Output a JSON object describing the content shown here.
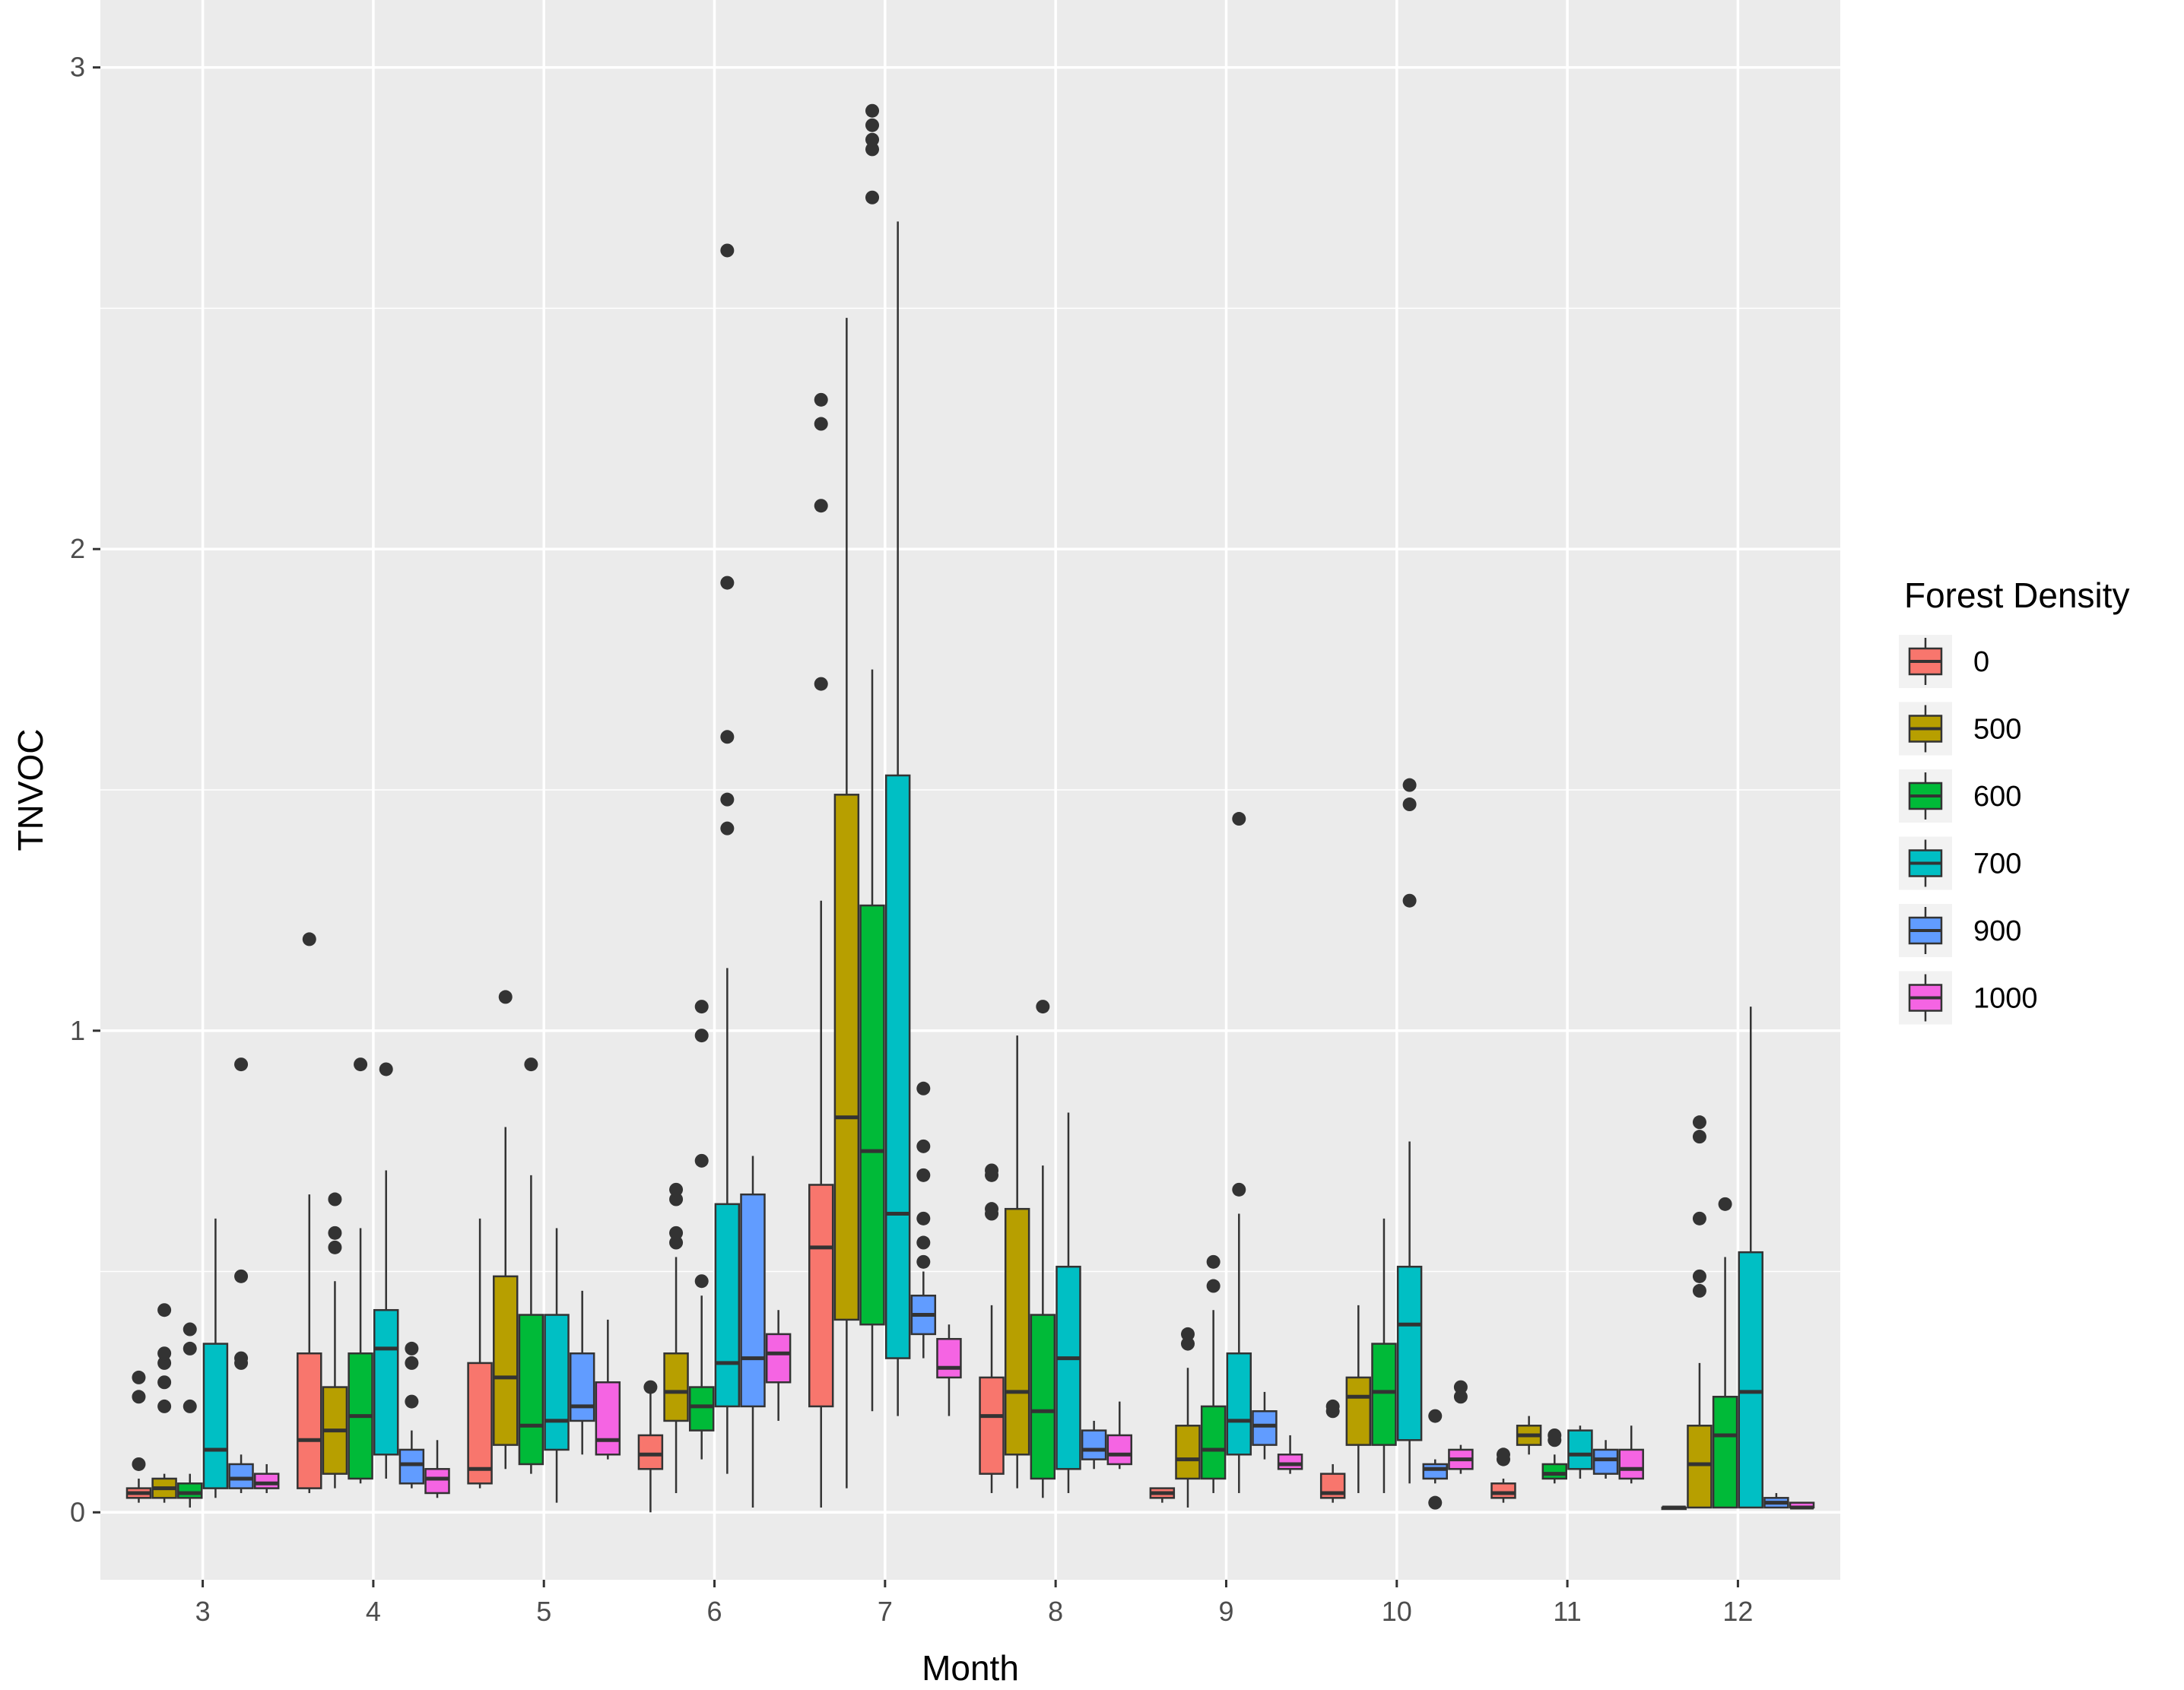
{
  "chart_data": {
    "type": "boxplot",
    "title": "",
    "xlabel": "Month",
    "ylabel": "TNVOC",
    "ylim": [
      -0.14,
      3.14
    ],
    "yticks": [
      0,
      1,
      2,
      3
    ],
    "categories": [
      "3",
      "4",
      "5",
      "6",
      "7",
      "8",
      "9",
      "10",
      "11",
      "12"
    ],
    "legend": {
      "title": "Forest Density",
      "position": "right",
      "entries": [
        "0",
        "500",
        "600",
        "700",
        "900",
        "1000"
      ]
    },
    "series": [
      {
        "name": "0",
        "color": "#F8766D",
        "boxes": [
          {
            "month": "3",
            "q1": 0.03,
            "median": 0.04,
            "q3": 0.05,
            "whisker_low": 0.02,
            "whisker_high": 0.07,
            "outliers": [
              0.1,
              0.24,
              0.28
            ]
          },
          {
            "month": "4",
            "q1": 0.05,
            "median": 0.15,
            "q3": 0.33,
            "whisker_low": 0.04,
            "whisker_high": 0.66,
            "outliers": [
              1.19
            ]
          },
          {
            "month": "5",
            "q1": 0.06,
            "median": 0.09,
            "q3": 0.31,
            "whisker_low": 0.05,
            "whisker_high": 0.61,
            "outliers": []
          },
          {
            "month": "6",
            "q1": 0.09,
            "median": 0.12,
            "q3": 0.16,
            "whisker_low": 0.0,
            "whisker_high": 0.25,
            "outliers": [
              0.26
            ]
          },
          {
            "month": "7",
            "q1": 0.22,
            "median": 0.55,
            "q3": 0.68,
            "whisker_low": 0.01,
            "whisker_high": 1.27,
            "outliers": [
              1.72,
              2.09,
              2.26,
              2.31
            ]
          },
          {
            "month": "8",
            "q1": 0.08,
            "median": 0.2,
            "q3": 0.28,
            "whisker_low": 0.04,
            "whisker_high": 0.43,
            "outliers": [
              0.62,
              0.63,
              0.7,
              0.71
            ]
          },
          {
            "month": "9",
            "q1": 0.03,
            "median": 0.04,
            "q3": 0.05,
            "whisker_low": 0.02,
            "whisker_high": 0.05,
            "outliers": []
          },
          {
            "month": "10",
            "q1": 0.03,
            "median": 0.04,
            "q3": 0.08,
            "whisker_low": 0.02,
            "whisker_high": 0.1,
            "outliers": [
              0.21,
              0.22
            ]
          },
          {
            "month": "11",
            "q1": 0.03,
            "median": 0.04,
            "q3": 0.06,
            "whisker_low": 0.02,
            "whisker_high": 0.07,
            "outliers": [
              0.11,
              0.12
            ]
          },
          {
            "month": "12",
            "q1": 0.01,
            "median": 0.01,
            "q3": 0.01,
            "whisker_low": 0.01,
            "whisker_high": 0.01,
            "outliers": []
          }
        ]
      },
      {
        "name": "500",
        "color": "#B79F00",
        "boxes": [
          {
            "month": "3",
            "q1": 0.03,
            "median": 0.05,
            "q3": 0.07,
            "whisker_low": 0.02,
            "whisker_high": 0.08,
            "outliers": [
              0.22,
              0.27,
              0.31,
              0.33,
              0.42
            ]
          },
          {
            "month": "4",
            "q1": 0.08,
            "median": 0.17,
            "q3": 0.26,
            "whisker_low": 0.05,
            "whisker_high": 0.48,
            "outliers": [
              0.55,
              0.58,
              0.65
            ]
          },
          {
            "month": "5",
            "q1": 0.14,
            "median": 0.28,
            "q3": 0.49,
            "whisker_low": 0.09,
            "whisker_high": 0.8,
            "outliers": [
              1.07
            ]
          },
          {
            "month": "6",
            "q1": 0.19,
            "median": 0.25,
            "q3": 0.33,
            "whisker_low": 0.04,
            "whisker_high": 0.53,
            "outliers": [
              0.56,
              0.58,
              0.65,
              0.67
            ]
          },
          {
            "month": "7",
            "q1": 0.4,
            "median": 0.82,
            "q3": 1.49,
            "whisker_low": 0.05,
            "whisker_high": 2.48,
            "outliers": []
          },
          {
            "month": "8",
            "q1": 0.12,
            "median": 0.25,
            "q3": 0.63,
            "whisker_low": 0.05,
            "whisker_high": 0.99,
            "outliers": []
          },
          {
            "month": "9",
            "q1": 0.07,
            "median": 0.11,
            "q3": 0.18,
            "whisker_low": 0.01,
            "whisker_high": 0.3,
            "outliers": [
              0.35,
              0.37
            ]
          },
          {
            "month": "10",
            "q1": 0.14,
            "median": 0.24,
            "q3": 0.28,
            "whisker_low": 0.04,
            "whisker_high": 0.43,
            "outliers": []
          },
          {
            "month": "11",
            "q1": 0.14,
            "median": 0.16,
            "q3": 0.18,
            "whisker_low": 0.12,
            "whisker_high": 0.2,
            "outliers": []
          },
          {
            "month": "12",
            "q1": 0.01,
            "median": 0.1,
            "q3": 0.18,
            "whisker_low": 0.01,
            "whisker_high": 0.31,
            "outliers": [
              0.46,
              0.49,
              0.61,
              0.78,
              0.81
            ]
          }
        ]
      },
      {
        "name": "600",
        "color": "#00BA38",
        "boxes": [
          {
            "month": "3",
            "q1": 0.03,
            "median": 0.04,
            "q3": 0.06,
            "whisker_low": 0.01,
            "whisker_high": 0.08,
            "outliers": [
              0.22,
              0.34,
              0.38
            ]
          },
          {
            "month": "4",
            "q1": 0.07,
            "median": 0.2,
            "q3": 0.33,
            "whisker_low": 0.06,
            "whisker_high": 0.59,
            "outliers": [
              0.93
            ]
          },
          {
            "month": "5",
            "q1": 0.1,
            "median": 0.18,
            "q3": 0.41,
            "whisker_low": 0.08,
            "whisker_high": 0.7,
            "outliers": [
              0.93
            ]
          },
          {
            "month": "6",
            "q1": 0.17,
            "median": 0.22,
            "q3": 0.26,
            "whisker_low": 0.11,
            "whisker_high": 0.45,
            "outliers": [
              0.48,
              0.73,
              0.99,
              1.05
            ]
          },
          {
            "month": "7",
            "q1": 0.39,
            "median": 0.75,
            "q3": 1.26,
            "whisker_low": 0.21,
            "whisker_high": 1.75,
            "outliers": [
              2.73,
              2.83,
              2.85,
              2.88,
              2.91
            ]
          },
          {
            "month": "8",
            "q1": 0.07,
            "median": 0.21,
            "q3": 0.41,
            "whisker_low": 0.03,
            "whisker_high": 0.72,
            "outliers": [
              1.05
            ]
          },
          {
            "month": "9",
            "q1": 0.07,
            "median": 0.13,
            "q3": 0.22,
            "whisker_low": 0.04,
            "whisker_high": 0.42,
            "outliers": [
              0.47,
              0.52
            ]
          },
          {
            "month": "10",
            "q1": 0.14,
            "median": 0.25,
            "q3": 0.35,
            "whisker_low": 0.04,
            "whisker_high": 0.61,
            "outliers": []
          },
          {
            "month": "11",
            "q1": 0.07,
            "median": 0.08,
            "q3": 0.1,
            "whisker_low": 0.06,
            "whisker_high": 0.12,
            "outliers": [
              0.15,
              0.16
            ]
          },
          {
            "month": "12",
            "q1": 0.01,
            "median": 0.16,
            "q3": 0.24,
            "whisker_low": 0.01,
            "whisker_high": 0.53,
            "outliers": [
              0.64
            ]
          }
        ]
      },
      {
        "name": "700",
        "color": "#00BFC4",
        "boxes": [
          {
            "month": "3",
            "q1": 0.05,
            "median": 0.13,
            "q3": 0.35,
            "whisker_low": 0.03,
            "whisker_high": 0.61,
            "outliers": []
          },
          {
            "month": "4",
            "q1": 0.12,
            "median": 0.34,
            "q3": 0.42,
            "whisker_low": 0.07,
            "whisker_high": 0.71,
            "outliers": [
              0.92
            ]
          },
          {
            "month": "5",
            "q1": 0.13,
            "median": 0.19,
            "q3": 0.41,
            "whisker_low": 0.02,
            "whisker_high": 0.59,
            "outliers": []
          },
          {
            "month": "6",
            "q1": 0.22,
            "median": 0.31,
            "q3": 0.64,
            "whisker_low": 0.08,
            "whisker_high": 1.13,
            "outliers": [
              1.42,
              1.48,
              1.61,
              1.93,
              2.62
            ]
          },
          {
            "month": "7",
            "q1": 0.32,
            "median": 0.62,
            "q3": 1.53,
            "whisker_low": 0.2,
            "whisker_high": 2.68,
            "outliers": []
          },
          {
            "month": "8",
            "q1": 0.09,
            "median": 0.32,
            "q3": 0.51,
            "whisker_low": 0.04,
            "whisker_high": 0.83,
            "outliers": []
          },
          {
            "month": "9",
            "q1": 0.12,
            "median": 0.19,
            "q3": 0.33,
            "whisker_low": 0.04,
            "whisker_high": 0.62,
            "outliers": [
              0.67,
              1.44
            ]
          },
          {
            "month": "10",
            "q1": 0.15,
            "median": 0.39,
            "q3": 0.51,
            "whisker_low": 0.06,
            "whisker_high": 0.77,
            "outliers": [
              1.27,
              1.47,
              1.51
            ]
          },
          {
            "month": "11",
            "q1": 0.09,
            "median": 0.12,
            "q3": 0.17,
            "whisker_low": 0.07,
            "whisker_high": 0.18,
            "outliers": []
          },
          {
            "month": "12",
            "q1": 0.01,
            "median": 0.25,
            "q3": 0.54,
            "whisker_low": 0.01,
            "whisker_high": 1.05,
            "outliers": []
          }
        ]
      },
      {
        "name": "900",
        "color": "#619CFF",
        "boxes": [
          {
            "month": "3",
            "q1": 0.05,
            "median": 0.07,
            "q3": 0.1,
            "whisker_low": 0.04,
            "whisker_high": 0.12,
            "outliers": [
              0.31,
              0.32,
              0.49,
              0.93
            ]
          },
          {
            "month": "4",
            "q1": 0.06,
            "median": 0.1,
            "q3": 0.13,
            "whisker_low": 0.05,
            "whisker_high": 0.17,
            "outliers": [
              0.23,
              0.31,
              0.34
            ]
          },
          {
            "month": "5",
            "q1": 0.19,
            "median": 0.22,
            "q3": 0.33,
            "whisker_low": 0.12,
            "whisker_high": 0.46,
            "outliers": []
          },
          {
            "month": "6",
            "q1": 0.22,
            "median": 0.32,
            "q3": 0.66,
            "whisker_low": 0.01,
            "whisker_high": 0.74,
            "outliers": []
          },
          {
            "month": "7",
            "q1": 0.37,
            "median": 0.41,
            "q3": 0.45,
            "whisker_low": 0.32,
            "whisker_high": 0.5,
            "outliers": [
              0.52,
              0.56,
              0.61,
              0.7,
              0.76,
              0.88
            ]
          },
          {
            "month": "8",
            "q1": 0.11,
            "median": 0.13,
            "q3": 0.17,
            "whisker_low": 0.09,
            "whisker_high": 0.19,
            "outliers": []
          },
          {
            "month": "9",
            "q1": 0.14,
            "median": 0.18,
            "q3": 0.21,
            "whisker_low": 0.11,
            "whisker_high": 0.25,
            "outliers": []
          },
          {
            "month": "10",
            "q1": 0.07,
            "median": 0.09,
            "q3": 0.1,
            "whisker_low": 0.06,
            "whisker_high": 0.11,
            "outliers": [
              0.02,
              0.2
            ]
          },
          {
            "month": "11",
            "q1": 0.08,
            "median": 0.11,
            "q3": 0.13,
            "whisker_low": 0.07,
            "whisker_high": 0.15,
            "outliers": []
          },
          {
            "month": "12",
            "q1": 0.01,
            "median": 0.02,
            "q3": 0.03,
            "whisker_low": 0.01,
            "whisker_high": 0.04,
            "outliers": []
          }
        ]
      },
      {
        "name": "1000",
        "color": "#F564E3",
        "boxes": [
          {
            "month": "3",
            "q1": 0.05,
            "median": 0.06,
            "q3": 0.08,
            "whisker_low": 0.04,
            "whisker_high": 0.1,
            "outliers": []
          },
          {
            "month": "4",
            "q1": 0.04,
            "median": 0.07,
            "q3": 0.09,
            "whisker_low": 0.03,
            "whisker_high": 0.15,
            "outliers": []
          },
          {
            "month": "5",
            "q1": 0.12,
            "median": 0.15,
            "q3": 0.27,
            "whisker_low": 0.11,
            "whisker_high": 0.4,
            "outliers": []
          },
          {
            "month": "6",
            "q1": 0.27,
            "median": 0.33,
            "q3": 0.37,
            "whisker_low": 0.19,
            "whisker_high": 0.42,
            "outliers": []
          },
          {
            "month": "7",
            "q1": 0.28,
            "median": 0.3,
            "q3": 0.36,
            "whisker_low": 0.2,
            "whisker_high": 0.39,
            "outliers": []
          },
          {
            "month": "8",
            "q1": 0.1,
            "median": 0.12,
            "q3": 0.16,
            "whisker_low": 0.09,
            "whisker_high": 0.23,
            "outliers": []
          },
          {
            "month": "9",
            "q1": 0.09,
            "median": 0.1,
            "q3": 0.12,
            "whisker_low": 0.08,
            "whisker_high": 0.16,
            "outliers": []
          },
          {
            "month": "10",
            "q1": 0.09,
            "median": 0.11,
            "q3": 0.13,
            "whisker_low": 0.08,
            "whisker_high": 0.14,
            "outliers": [
              0.24,
              0.26
            ]
          },
          {
            "month": "11",
            "q1": 0.07,
            "median": 0.09,
            "q3": 0.13,
            "whisker_low": 0.06,
            "whisker_high": 0.18,
            "outliers": []
          },
          {
            "month": "12",
            "q1": 0.01,
            "median": 0.01,
            "q3": 0.02,
            "whisker_low": 0.01,
            "whisker_high": 0.02,
            "outliers": []
          }
        ]
      }
    ]
  }
}
